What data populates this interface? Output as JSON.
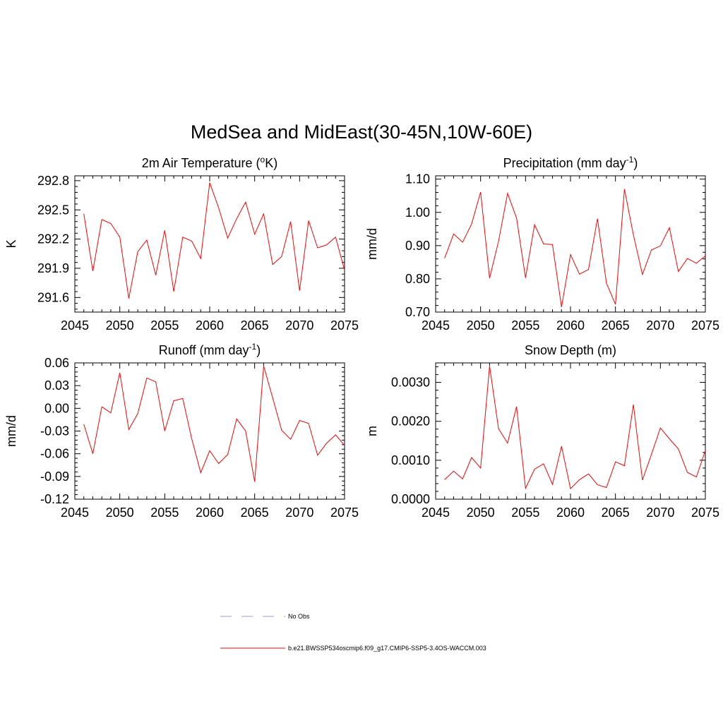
{
  "figure": {
    "title": "MedSea and MidEast(30-45N,10W-60E)"
  },
  "legend": {
    "entries": [
      {
        "label": "No Obs",
        "color": "#9999dd",
        "style": "dashed"
      },
      {
        "label": "b.e21.BWSSP534oscmip6.f09_g17.CMIP6-SSP5-3.4OS-WACCM.003",
        "color": "#ff0000",
        "style": "solid"
      }
    ]
  },
  "chart_data": [
    {
      "type": "line",
      "panel": "top-left",
      "title": "2m Air Temperature (",
      "title_sup": "o",
      "title_after": "K)",
      "xlabel": "",
      "ylabel": "K",
      "xlim": [
        2045,
        2075
      ],
      "ylim": [
        291.45,
        292.85
      ],
      "x_ticks": [
        2045,
        2050,
        2055,
        2060,
        2065,
        2070,
        2075
      ],
      "x_tick_labels": [
        "2045",
        "2050",
        "2055",
        "2060",
        "2065",
        "2070",
        "2075"
      ],
      "y_ticks": [
        291.6,
        291.9,
        292.2,
        292.5,
        292.8
      ],
      "y_tick_labels": [
        "291.6",
        "291.9",
        "292.2",
        "292.5",
        "292.8"
      ],
      "y_minor_step": 0.06,
      "color": "#ff0000",
      "series": [
        {
          "name": "b.e21.BWSSP534oscmip6.f09_g17.CMIP6-SSP5-3.4OS-WACCM.003",
          "x": [
            2046,
            2047,
            2048,
            2049,
            2050,
            2051,
            2052,
            2053,
            2054,
            2055,
            2056,
            2057,
            2058,
            2059,
            2060,
            2061,
            2062,
            2063,
            2064,
            2065,
            2066,
            2067,
            2068,
            2069,
            2070,
            2071,
            2072,
            2073,
            2074,
            2075
          ],
          "values": [
            292.46,
            291.87,
            292.4,
            292.36,
            292.22,
            291.59,
            292.07,
            292.19,
            291.83,
            292.29,
            291.66,
            292.22,
            292.18,
            292.0,
            292.78,
            292.52,
            292.21,
            292.41,
            292.58,
            292.25,
            292.46,
            291.94,
            292.02,
            292.38,
            291.67,
            292.39,
            292.11,
            292.14,
            292.22,
            291.88
          ]
        }
      ]
    },
    {
      "type": "line",
      "panel": "top-right",
      "title": "Precipitation (mm day",
      "title_sup": "-1",
      "title_after": ")",
      "xlabel": "",
      "ylabel": "mm/d",
      "xlim": [
        2045,
        2075
      ],
      "ylim": [
        0.7,
        1.11
      ],
      "x_ticks": [
        2045,
        2050,
        2055,
        2060,
        2065,
        2070,
        2075
      ],
      "x_tick_labels": [
        "2045",
        "2050",
        "2055",
        "2060",
        "2065",
        "2070",
        "2075"
      ],
      "y_ticks": [
        0.7,
        0.8,
        0.9,
        1.0,
        1.1
      ],
      "y_tick_labels": [
        "0.70",
        "0.80",
        "0.90",
        "1.00",
        "1.10"
      ],
      "y_minor_step": 0.02,
      "color": "#ff0000",
      "series": [
        {
          "name": "b.e21.BWSSP534oscmip6.f09_g17.CMIP6-SSP5-3.4OS-WACCM.003",
          "x": [
            2046,
            2047,
            2048,
            2049,
            2050,
            2051,
            2052,
            2053,
            2054,
            2055,
            2056,
            2057,
            2058,
            2059,
            2060,
            2061,
            2062,
            2063,
            2064,
            2065,
            2066,
            2067,
            2068,
            2069,
            2070,
            2071,
            2072,
            2073,
            2074,
            2075
          ],
          "values": [
            0.862,
            0.935,
            0.91,
            0.965,
            1.061,
            0.802,
            0.913,
            1.057,
            0.983,
            0.803,
            0.963,
            0.905,
            0.903,
            0.715,
            0.873,
            0.814,
            0.828,
            0.981,
            0.787,
            0.723,
            1.07,
            0.932,
            0.813,
            0.887,
            0.899,
            0.954,
            0.822,
            0.861,
            0.847,
            0.869
          ]
        }
      ]
    },
    {
      "type": "line",
      "panel": "bottom-left",
      "title": "Runoff (mm day",
      "title_sup": "-1",
      "title_after": ")",
      "xlabel": "",
      "ylabel": "mm/d",
      "xlim": [
        2045,
        2075
      ],
      "ylim": [
        -0.12,
        0.06
      ],
      "x_ticks": [
        2045,
        2050,
        2055,
        2060,
        2065,
        2070,
        2075
      ],
      "x_tick_labels": [
        "2045",
        "2050",
        "2055",
        "2060",
        "2065",
        "2070",
        "2075"
      ],
      "y_ticks": [
        -0.12,
        -0.09,
        -0.06,
        -0.03,
        0.0,
        0.03,
        0.06
      ],
      "y_tick_labels": [
        "-0.12",
        "-0.09",
        "-0.06",
        "-0.03",
        "0.00",
        "0.03",
        "0.06"
      ],
      "y_minor_step": 0.006,
      "color": "#ff0000",
      "series": [
        {
          "name": "b.e21.BWSSP534oscmip6.f09_g17.CMIP6-SSP5-3.4OS-WACCM.003",
          "x": [
            2046,
            2047,
            2048,
            2049,
            2050,
            2051,
            2052,
            2053,
            2054,
            2055,
            2056,
            2057,
            2058,
            2059,
            2060,
            2061,
            2062,
            2063,
            2064,
            2065,
            2066,
            2067,
            2068,
            2069,
            2070,
            2071,
            2072,
            2073,
            2074,
            2075
          ],
          "values": [
            -0.021,
            -0.06,
            0.002,
            -0.006,
            0.047,
            -0.028,
            -0.007,
            0.04,
            0.035,
            -0.03,
            0.01,
            0.013,
            -0.04,
            -0.085,
            -0.056,
            -0.073,
            -0.061,
            -0.014,
            -0.03,
            -0.097,
            0.056,
            0.014,
            -0.029,
            -0.041,
            -0.016,
            -0.02,
            -0.062,
            -0.046,
            -0.035,
            -0.049
          ]
        }
      ]
    },
    {
      "type": "line",
      "panel": "bottom-right",
      "title": "Snow Depth (m)",
      "title_sup": "",
      "title_after": "",
      "xlabel": "",
      "ylabel": "m",
      "xlim": [
        2045,
        2075
      ],
      "ylim": [
        0.0,
        0.0035
      ],
      "x_ticks": [
        2045,
        2050,
        2055,
        2060,
        2065,
        2070,
        2075
      ],
      "x_tick_labels": [
        "2045",
        "2050",
        "2055",
        "2060",
        "2065",
        "2070",
        "2075"
      ],
      "y_ticks": [
        0.0,
        0.001,
        0.002,
        0.003
      ],
      "y_tick_labels": [
        "0.0000",
        "0.0010",
        "0.0020",
        "0.0030"
      ],
      "y_minor_step": 0.0002,
      "color": "#ff0000",
      "series": [
        {
          "name": "b.e21.BWSSP534oscmip6.f09_g17.CMIP6-SSP5-3.4OS-WACCM.003",
          "x": [
            2046,
            2047,
            2048,
            2049,
            2050,
            2051,
            2052,
            2053,
            2054,
            2055,
            2056,
            2057,
            2058,
            2059,
            2060,
            2061,
            2062,
            2063,
            2064,
            2065,
            2066,
            2067,
            2068,
            2069,
            2070,
            2071,
            2072,
            2073,
            2074,
            2075
          ],
          "values": [
            0.0005,
            0.00072,
            0.00052,
            0.00107,
            0.0008,
            0.00342,
            0.00181,
            0.00144,
            0.00238,
            0.00028,
            0.00077,
            0.00091,
            0.00038,
            0.00136,
            0.00027,
            0.0005,
            0.00065,
            0.00037,
            0.0003,
            0.00096,
            0.00086,
            0.00243,
            0.00049,
            0.00115,
            0.00183,
            0.00155,
            0.00129,
            0.00069,
            0.00057,
            0.00125
          ]
        }
      ]
    }
  ]
}
